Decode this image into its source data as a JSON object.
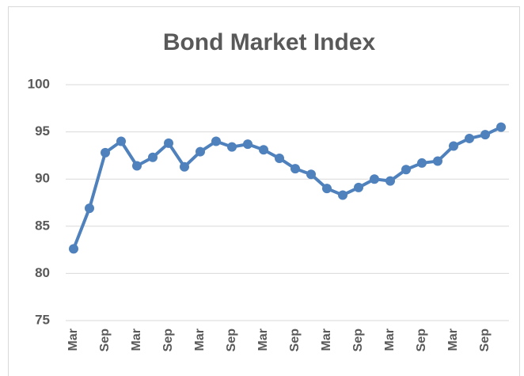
{
  "chart_data": {
    "type": "line",
    "title": "Bond Market Index",
    "categories": [
      "Mar",
      null,
      "Sep",
      null,
      "Mar",
      null,
      "Sep",
      null,
      "Mar",
      null,
      "Sep",
      null,
      "Mar",
      null,
      "Sep",
      null,
      "Mar",
      null,
      "Sep",
      null,
      "Mar",
      null,
      "Sep",
      null,
      "Mar",
      null,
      "Sep",
      null
    ],
    "series": [
      {
        "color": "#4f81bd",
        "values": [
          82.6,
          86.9,
          92.8,
          94.0,
          91.4,
          92.3,
          93.8,
          91.3,
          92.9,
          94.0,
          93.4,
          93.7,
          93.1,
          92.2,
          91.1,
          90.5,
          89.0,
          88.3,
          89.1,
          90.0,
          89.8,
          91.0,
          91.7,
          91.9,
          93.5,
          94.3,
          94.7,
          95.5
        ]
      }
    ],
    "ylim": [
      75,
      100
    ],
    "yticks": [
      75,
      80,
      85,
      90,
      95,
      100
    ],
    "grid": true
  }
}
